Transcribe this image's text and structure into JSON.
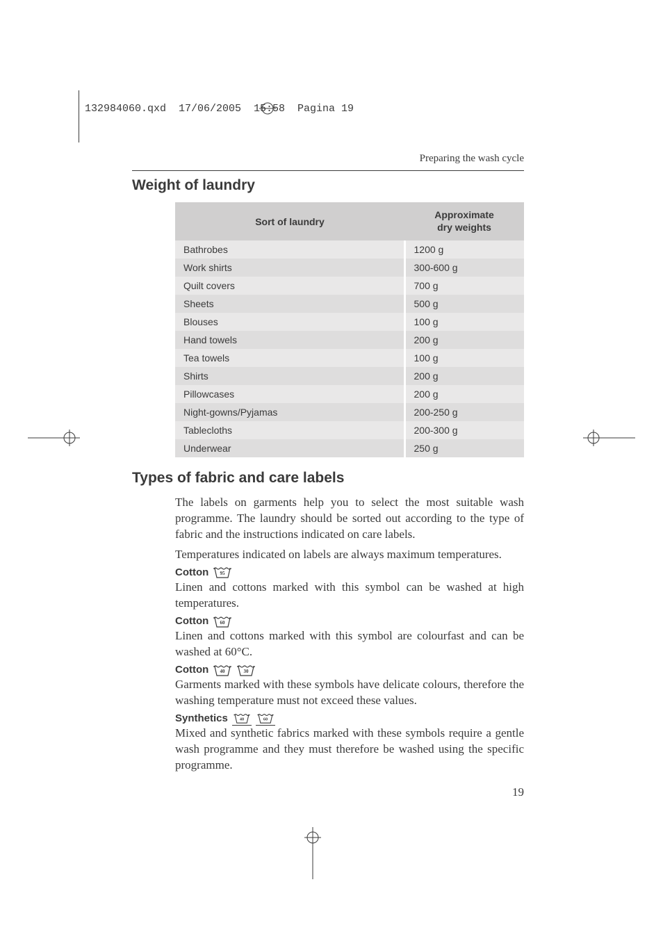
{
  "print_header": "132984060.qxd  17/06/2005  15:58  Pagina 19",
  "section_header": "Preparing the wash cycle",
  "h_weight": "Weight of laundry",
  "table": {
    "col_sort": "Sort of laundry",
    "col_weight_l1": "Approximate",
    "col_weight_l2": "dry weights",
    "rows": [
      {
        "item": "Bathrobes",
        "weight": "1200 g"
      },
      {
        "item": "Work shirts",
        "weight": "300-600 g"
      },
      {
        "item": "Quilt covers",
        "weight": "700 g"
      },
      {
        "item": "Sheets",
        "weight": "500 g"
      },
      {
        "item": "Blouses",
        "weight": "100 g"
      },
      {
        "item": "Hand towels",
        "weight": "200 g"
      },
      {
        "item": "Tea towels",
        "weight": "100 g"
      },
      {
        "item": "Shirts",
        "weight": "200 g"
      },
      {
        "item": "Pillowcases",
        "weight": "200 g"
      },
      {
        "item": "Night-gowns/Pyjamas",
        "weight": "200-250 g"
      },
      {
        "item": "Tablecloths",
        "weight": "200-300 g"
      },
      {
        "item": "Underwear",
        "weight": "250 g"
      }
    ]
  },
  "h_fabric": "Types of fabric and care labels",
  "fabric_intro": "The labels on garments help you to select the most suitable wash programme. The laundry should be sorted out according to the type of fabric and the instructions indicated on care labels.",
  "fabric_temp": "Temperatures indicated on labels are always maximum temperatures.",
  "cotton": "Cotton",
  "synthetics": "Synthetics",
  "cotton95_text": "Linen and cottons marked with this symbol can be washed at high temperatures.",
  "cotton60_text": "Linen and cottons marked with this symbol are colourfast and can be washed at 60°C.",
  "cotton4030_text": "Garments marked with these symbols have delicate colours, therefore the washing temperature must not exceed these values.",
  "synth_text": "Mixed and synthetic fabrics marked with these symbols require a gentle wash programme and they must therefore be washed using the specific programme.",
  "icon_labels": {
    "t95": "95",
    "t60": "60",
    "t40": "40",
    "t30": "30"
  },
  "page_number": "19",
  "colors": {
    "text": "#3a3a3a",
    "th_bg": "#d0cfcf",
    "row_odd": "#e9e8e8",
    "row_even": "#dedddd",
    "page_bg": "#ffffff"
  },
  "fontsizes": {
    "h2": 21,
    "body": 17,
    "table": 14,
    "label": 15,
    "header": 15,
    "pagenum": 17
  }
}
